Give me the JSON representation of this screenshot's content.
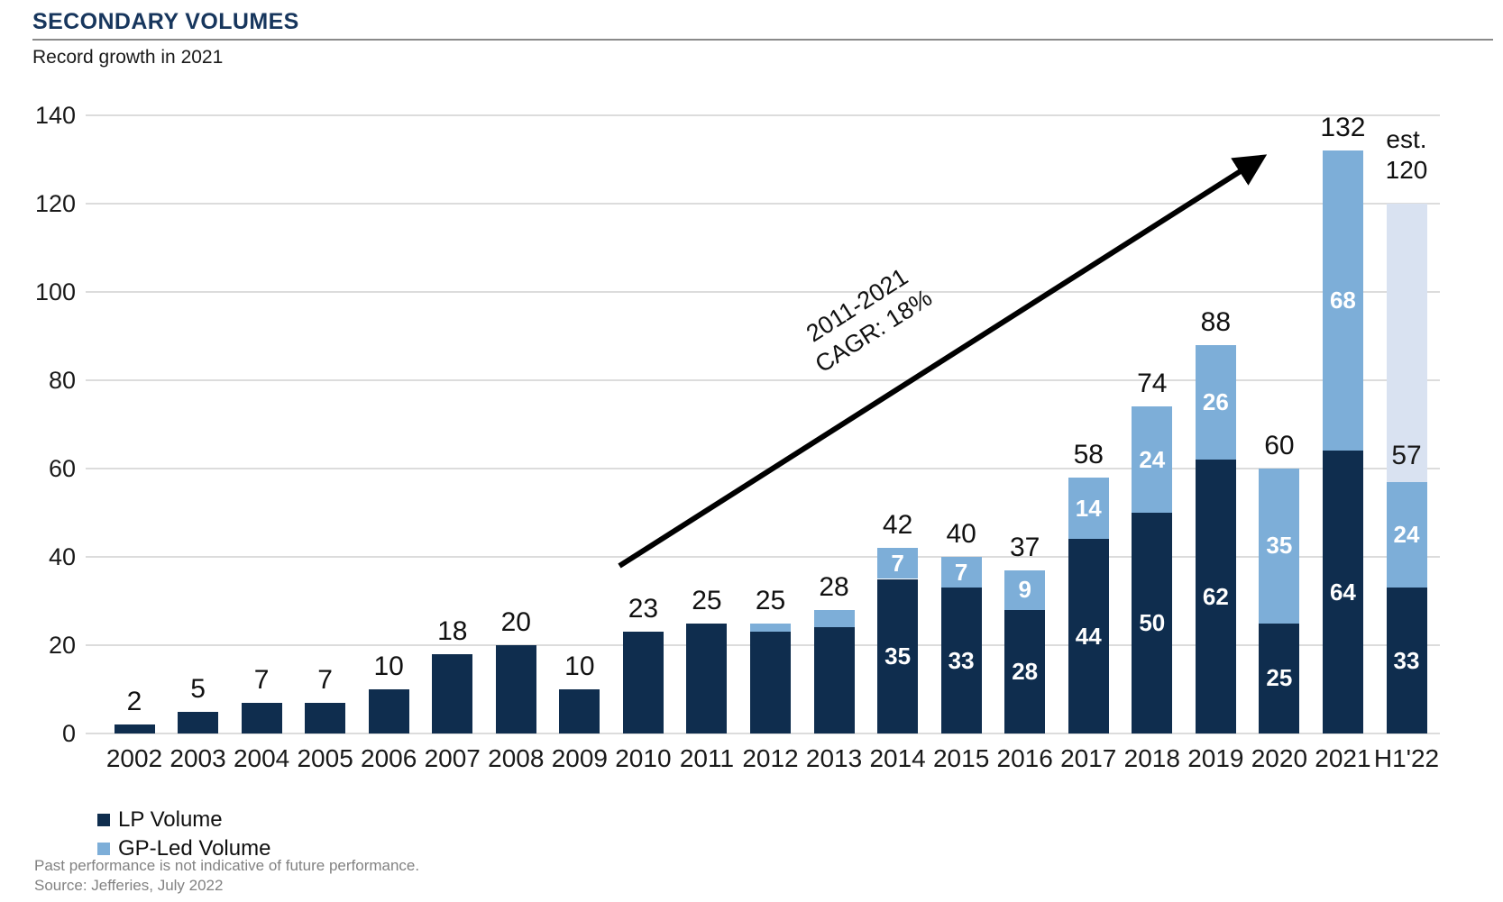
{
  "header": {
    "title": "SECONDARY VOLUMES",
    "subtitle": "Record growth in 2021"
  },
  "chart_data": {
    "type": "bar",
    "variant": "stacked",
    "title": "SECONDARY VOLUMES",
    "subtitle": "Record growth in 2021",
    "y_axis": {
      "min": 0,
      "max": 140,
      "tick_step": 20,
      "ticks": [
        0,
        20,
        40,
        60,
        80,
        100,
        120,
        140
      ],
      "grid": true
    },
    "categories": [
      "2002",
      "2003",
      "2004",
      "2005",
      "2006",
      "2007",
      "2008",
      "2009",
      "2010",
      "2011",
      "2012",
      "2013",
      "2014",
      "2015",
      "2016",
      "2017",
      "2018",
      "2019",
      "2020",
      "2021",
      "H1'22"
    ],
    "series": [
      {
        "name": "LP Volume",
        "color": "#0F2D4E",
        "values": [
          2,
          5,
          7,
          7,
          10,
          18,
          20,
          10,
          23,
          25,
          23,
          24,
          35,
          33,
          28,
          44,
          50,
          62,
          25,
          64,
          33
        ]
      },
      {
        "name": "GP-Led Volume",
        "color": "#7DAED8",
        "values": [
          0,
          0,
          0,
          0,
          0,
          0,
          0,
          0,
          0,
          0,
          2,
          4,
          7,
          7,
          9,
          14,
          24,
          26,
          35,
          68,
          24
        ]
      },
      {
        "name": "est.",
        "color": "#D9E2F1",
        "values": [
          0,
          0,
          0,
          0,
          0,
          0,
          0,
          0,
          0,
          0,
          0,
          0,
          0,
          0,
          0,
          0,
          0,
          0,
          0,
          0,
          63
        ]
      }
    ],
    "bar_labels": {
      "totals": [
        "2",
        "5",
        "7",
        "7",
        "10",
        "18",
        "20",
        "10",
        "23",
        "25",
        "25",
        "28",
        "42",
        "40",
        "37",
        "58",
        "74",
        "88",
        "60",
        "132",
        ""
      ],
      "inside_lp": [
        "",
        "",
        "",
        "",
        "",
        "",
        "",
        "",
        "",
        "",
        "",
        "",
        "35",
        "33",
        "28",
        "44",
        "50",
        "62",
        "25",
        "64",
        "33"
      ],
      "inside_gp": [
        "",
        "",
        "",
        "",
        "",
        "",
        "",
        "",
        "",
        "",
        "",
        "",
        "7",
        "7",
        "9",
        "14",
        "24",
        "26",
        "35",
        "68",
        "24"
      ],
      "inside_est": [
        "",
        "",
        "",
        "",
        "",
        "",
        "",
        "",
        "",
        "",
        "",
        "",
        "",
        "",
        "",
        "",
        "",
        "",
        "",
        "",
        "57"
      ],
      "above_last_bar": [
        "est.",
        "120"
      ]
    },
    "annotation": {
      "line1": "2011-2021",
      "line2": "CAGR: 18%"
    },
    "legend_position": "bottom-left"
  },
  "legend": {
    "items": [
      {
        "label": "LP Volume",
        "color": "#0F2D4E"
      },
      {
        "label": "GP-Led Volume",
        "color": "#7DAED8"
      }
    ]
  },
  "footnotes": {
    "disclaimer": "Past performance is not indicative of future performance.",
    "source": "Source: Jefferies, July 2022"
  }
}
